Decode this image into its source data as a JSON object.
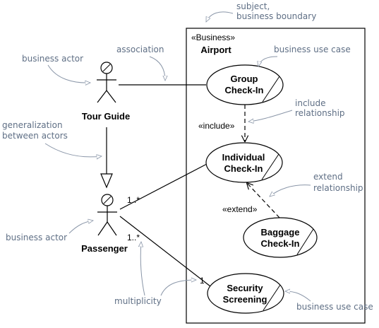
{
  "boundary": {
    "stereotype": "«Business»",
    "name": "Airport"
  },
  "actors": {
    "tour_guide": "Tour Guide",
    "passenger": "Passenger"
  },
  "use_cases": {
    "group_checkin": [
      "Group",
      "Check-In"
    ],
    "individual_checkin": [
      "Individual",
      "Check-In"
    ],
    "baggage_checkin": [
      "Baggage",
      "Check-In"
    ],
    "security_screening": [
      "Security",
      "Screening"
    ]
  },
  "relationships": {
    "include": "«include»",
    "extend": "«extend»"
  },
  "multiplicities": {
    "passenger_individual": "1..*",
    "passenger_security": "1..*",
    "security_end": "1"
  },
  "annotations": {
    "subject": [
      "subject,",
      "business boundary"
    ],
    "business_actor_top": "business actor",
    "association": "association",
    "business_use_case_top": "business use case",
    "generalization": [
      "generalization",
      "between actors"
    ],
    "include_relationship": [
      "include",
      "relationship"
    ],
    "extend_relationship": [
      "extend",
      "relationship"
    ],
    "business_actor_bottom": "business actor",
    "multiplicity": "multiplicity",
    "business_use_case_bottom": "business use case"
  }
}
